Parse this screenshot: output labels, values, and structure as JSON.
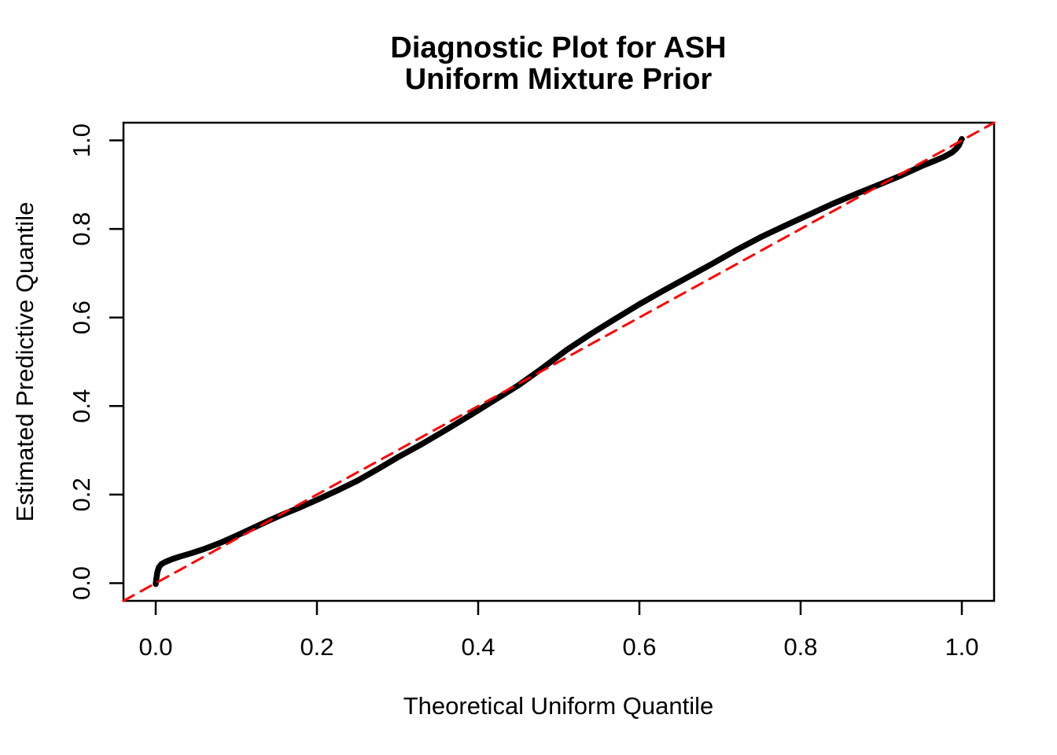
{
  "figure": {
    "title_lines": [
      "Diagnostic Plot for ASH",
      "Uniform Mixture Prior"
    ],
    "xlabel": "Theoretical Uniform Quantile",
    "ylabel": "Estimated Predictive Quantile",
    "background_color": "#ffffff",
    "axis_color": "#000000"
  },
  "chart_data": {
    "type": "line",
    "title": "Diagnostic Plot for ASH\nUniform Mixture Prior",
    "xlabel": "Theoretical Uniform Quantile",
    "ylabel": "Estimated Predictive Quantile",
    "xlim": [
      -0.04,
      1.04
    ],
    "ylim": [
      -0.04,
      1.04
    ],
    "x_ticks": [
      0.0,
      0.2,
      0.4,
      0.6,
      0.8,
      1.0
    ],
    "y_ticks": [
      0.0,
      0.2,
      0.4,
      0.6,
      0.8,
      1.0
    ],
    "tick_decimals": 1,
    "grid": false,
    "legend_position": "none",
    "series": [
      {
        "name": "estimated-predictive-quantile-curve",
        "color": "#000000",
        "width": 7.5,
        "style": "solid",
        "points": [
          [
            0.0,
            -0.002
          ],
          [
            0.001,
            0.012
          ],
          [
            0.002,
            0.025
          ],
          [
            0.004,
            0.036
          ],
          [
            0.007,
            0.043
          ],
          [
            0.012,
            0.048
          ],
          [
            0.02,
            0.054
          ],
          [
            0.03,
            0.06
          ],
          [
            0.045,
            0.068
          ],
          [
            0.06,
            0.077
          ],
          [
            0.08,
            0.091
          ],
          [
            0.1,
            0.107
          ],
          [
            0.12,
            0.124
          ],
          [
            0.14,
            0.141
          ],
          [
            0.16,
            0.157
          ],
          [
            0.18,
            0.172
          ],
          [
            0.2,
            0.188
          ],
          [
            0.225,
            0.209
          ],
          [
            0.25,
            0.231
          ],
          [
            0.275,
            0.257
          ],
          [
            0.3,
            0.284
          ],
          [
            0.33,
            0.314
          ],
          [
            0.36,
            0.346
          ],
          [
            0.39,
            0.379
          ],
          [
            0.42,
            0.413
          ],
          [
            0.45,
            0.447
          ],
          [
            0.48,
            0.486
          ],
          [
            0.51,
            0.527
          ],
          [
            0.54,
            0.563
          ],
          [
            0.57,
            0.597
          ],
          [
            0.6,
            0.63
          ],
          [
            0.63,
            0.661
          ],
          [
            0.66,
            0.691
          ],
          [
            0.69,
            0.721
          ],
          [
            0.72,
            0.752
          ],
          [
            0.75,
            0.781
          ],
          [
            0.78,
            0.807
          ],
          [
            0.81,
            0.832
          ],
          [
            0.84,
            0.857
          ],
          [
            0.87,
            0.88
          ],
          [
            0.9,
            0.902
          ],
          [
            0.925,
            0.921
          ],
          [
            0.95,
            0.942
          ],
          [
            0.965,
            0.953
          ],
          [
            0.978,
            0.963
          ],
          [
            0.988,
            0.973
          ],
          [
            0.993,
            0.981
          ],
          [
            0.996,
            0.988
          ],
          [
            0.998,
            0.995
          ],
          [
            0.999,
            1.0
          ],
          [
            1.0,
            1.003
          ]
        ]
      },
      {
        "name": "reference-diagonal-y-equals-x",
        "color": "#FF0000",
        "width": 3,
        "style": "dashed",
        "dash_pattern": [
          15,
          10
        ],
        "points": [
          [
            -0.04,
            -0.04
          ],
          [
            1.04,
            1.04
          ]
        ]
      }
    ]
  }
}
